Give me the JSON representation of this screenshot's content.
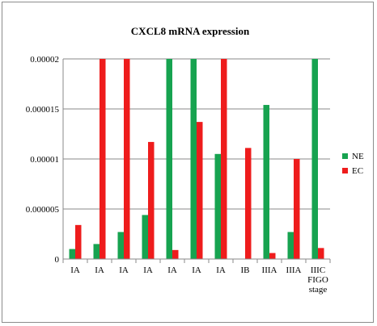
{
  "chart_data": {
    "type": "bar",
    "title": "CXCL8 mRNA expression",
    "xlabel": "",
    "ylabel": "",
    "x_axis_note": [
      "FIGO",
      "stage"
    ],
    "categories": [
      "IA",
      "IA",
      "IA",
      "IA",
      "IA",
      "IA",
      "IA",
      "IB",
      "IIIA",
      "IIIA",
      "IIIC"
    ],
    "ylim": [
      0,
      2e-05
    ],
    "yticks": [
      "0",
      "0.000005",
      "0.00001",
      "0.000015",
      "0.00002"
    ],
    "ytick_values": [
      0,
      5e-06,
      1e-05,
      1.5e-05,
      2e-05
    ],
    "grid": "horizontal",
    "legend": "right",
    "series": [
      {
        "name": "NE",
        "color": "#17a350",
        "values": [
          1e-06,
          1.5e-06,
          2.7e-06,
          4.4e-06,
          2e-05,
          2e-05,
          1.05e-05,
          0,
          1.54e-05,
          2.7e-06,
          2e-05
        ]
      },
      {
        "name": "EC",
        "color": "#ee1c1c",
        "values": [
          3.4e-06,
          2e-05,
          2e-05,
          1.17e-05,
          9e-07,
          1.37e-05,
          2e-05,
          1.11e-05,
          6e-07,
          1e-05,
          1.1e-06
        ]
      }
    ]
  }
}
